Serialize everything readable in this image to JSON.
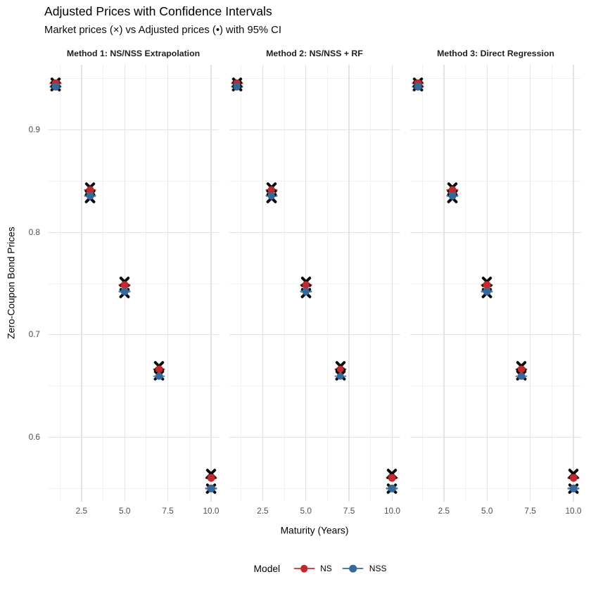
{
  "header": {
    "title": "Adjusted Prices with Confidence Intervals",
    "subtitle": "Market prices (×) vs Adjusted prices (•) with 95% CI"
  },
  "chart_data": {
    "type": "scatter",
    "title": "Adjusted Prices with Confidence Intervals",
    "subtitle": "Market prices (×) vs Adjusted prices (•) with 95% CI",
    "facets": [
      "Method 1: NS/NSS Extrapolation",
      "Method 2: NS/NSS + RF",
      "Method 3: Direct Regression"
    ],
    "xlabel": "Maturity (Years)",
    "ylabel": "Zero-Coupon Bond Prices",
    "x_tick_labels": [
      "2.5",
      "5.0",
      "7.5",
      "10.0"
    ],
    "x_tick_values": [
      2.5,
      5,
      7.5,
      10
    ],
    "y_tick_labels": [
      "0.9",
      "0.8",
      "0.7",
      "0.6"
    ],
    "y_tick_values": [
      0.9,
      0.8,
      0.7,
      0.6
    ],
    "x_minor_values": [
      1.25,
      3.75,
      6.25,
      8.75
    ],
    "y_minor_values": [
      0.55,
      0.65,
      0.75,
      0.85,
      0.95
    ],
    "xlim": [
      0.55,
      10.45
    ],
    "ylim": [
      0.5372,
      0.9635
    ],
    "grid": "on",
    "legend_position": "bottom",
    "maturities": [
      1,
      3,
      5,
      7,
      10
    ],
    "series": [
      {
        "name": "NS",
        "color": "#C2292D",
        "market_prices_x": [
          0.946,
          0.8435,
          0.7515,
          0.669,
          0.564
        ],
        "adjusted_prices_dot": [
          0.9455,
          0.841,
          0.7485,
          0.6665,
          0.5603
        ]
      },
      {
        "name": "NSS",
        "color": "#36689A",
        "market_prices_x": [
          0.9425,
          0.8335,
          0.7405,
          0.66,
          0.5501
        ],
        "adjusted_prices_dot": [
          0.942,
          0.8355,
          0.7425,
          0.6595,
          0.5503
        ]
      }
    ]
  },
  "legend": {
    "title": "Model",
    "items": [
      {
        "label": "NS",
        "color": "#C2292D"
      },
      {
        "label": "NSS",
        "color": "#36689A"
      }
    ]
  },
  "colors": {
    "background": "#FFFFFF",
    "grid_major": "#E3E3E3",
    "grid_minor": "#F1F1F1",
    "x_marker": "#0A0A0A",
    "tick_label": "#4D4D4D"
  }
}
